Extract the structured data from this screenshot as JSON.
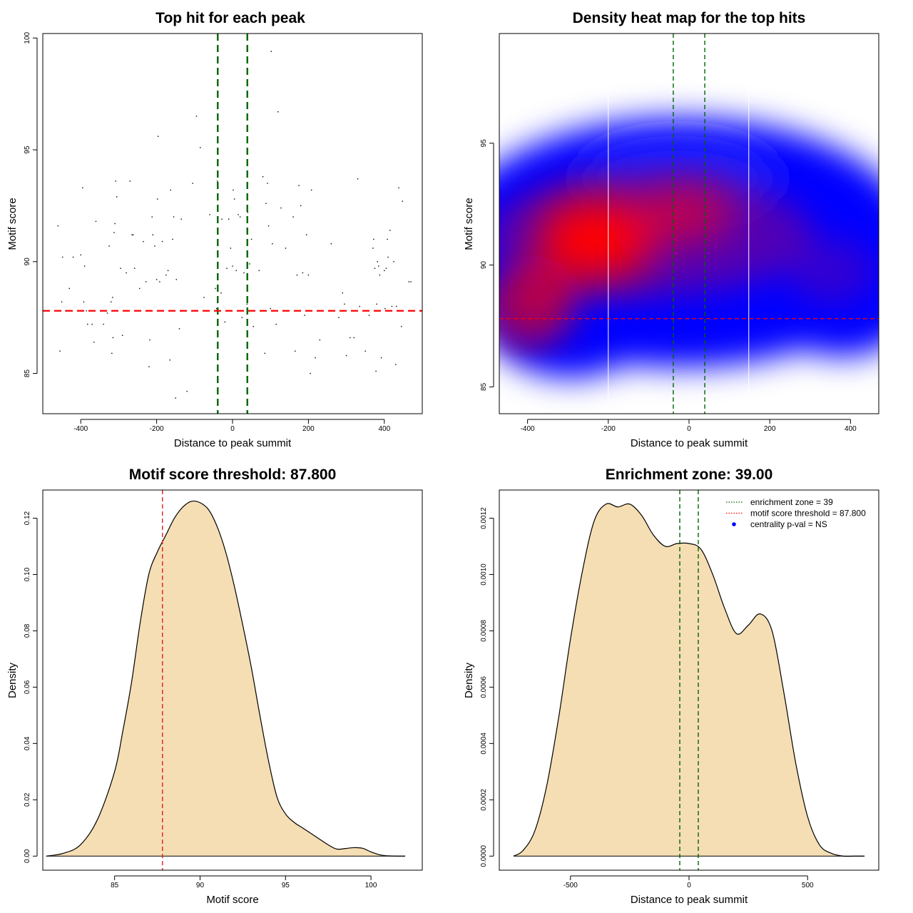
{
  "chart_data": [
    {
      "type": "scatter",
      "title": "Top hit for each peak",
      "xlabel": "Distance to peak summit",
      "ylabel": "Motif score",
      "xlim": [
        -500,
        500
      ],
      "ylim": [
        83.2,
        100.2
      ],
      "xticks": [
        "-400",
        "-200",
        "0",
        "200",
        "400"
      ],
      "yticks": [
        "85",
        "90",
        "95",
        "100"
      ],
      "vlines": [
        -39,
        39
      ],
      "hline": 87.8,
      "points": [
        [
          -460,
          91.6
        ],
        [
          -455,
          86.0
        ],
        [
          -448,
          90.2
        ],
        [
          -440,
          87.8
        ],
        [
          -430,
          88.8
        ],
        [
          -450,
          88.2
        ],
        [
          -420,
          90.2
        ],
        [
          -400,
          90.3
        ],
        [
          -395,
          93.3
        ],
        [
          -392,
          88.2
        ],
        [
          -390,
          89.8
        ],
        [
          -385,
          87.8
        ],
        [
          -382,
          87.2
        ],
        [
          -370,
          87.2
        ],
        [
          -365,
          86.4
        ],
        [
          -360,
          91.8
        ],
        [
          -340,
          87.2
        ],
        [
          -335,
          87.8
        ],
        [
          -330,
          87.7
        ],
        [
          -325,
          90.7
        ],
        [
          -320,
          88.2
        ],
        [
          -318,
          85.9
        ],
        [
          -316,
          88.4
        ],
        [
          -315,
          86.6
        ],
        [
          -312,
          91.3
        ],
        [
          -310,
          91.7
        ],
        [
          -308,
          93.6
        ],
        [
          -305,
          92.9
        ],
        [
          -295,
          89.7
        ],
        [
          -290,
          86.7
        ],
        [
          -280,
          89.5
        ],
        [
          -270,
          93.6
        ],
        [
          -265,
          91.2
        ],
        [
          -262,
          91.2
        ],
        [
          -258,
          89.7
        ],
        [
          -245,
          88.8
        ],
        [
          -235,
          90.9
        ],
        [
          -228,
          89.1
        ],
        [
          -220,
          85.3
        ],
        [
          -218,
          86.5
        ],
        [
          -212,
          92.0
        ],
        [
          -210,
          91.2
        ],
        [
          -205,
          90.7
        ],
        [
          -200,
          89.2
        ],
        [
          -198,
          92.8
        ],
        [
          -196,
          95.6
        ],
        [
          -192,
          89.1
        ],
        [
          -185,
          90.9
        ],
        [
          -175,
          89.4
        ],
        [
          -170,
          89.6
        ],
        [
          -165,
          85.6
        ],
        [
          -163,
          93.2
        ],
        [
          -158,
          91.0
        ],
        [
          -155,
          92.0
        ],
        [
          -150,
          83.9
        ],
        [
          -148,
          89.2
        ],
        [
          -140,
          87.0
        ],
        [
          -135,
          91.9
        ],
        [
          -120,
          84.2
        ],
        [
          -105,
          93.5
        ],
        [
          -95,
          96.5
        ],
        [
          -85,
          95.1
        ],
        [
          -75,
          88.4
        ],
        [
          -60,
          92.1
        ],
        [
          -45,
          88.8
        ],
        [
          -40,
          93.6
        ],
        [
          -30,
          88.6
        ],
        [
          -28,
          91.9
        ],
        [
          -20,
          87.3
        ],
        [
          -15,
          89.7
        ],
        [
          -10,
          91.9
        ],
        [
          0,
          89.8
        ],
        [
          2,
          93.2
        ],
        [
          5,
          92.8
        ],
        [
          10,
          89.6
        ],
        [
          15,
          92.1
        ],
        [
          20,
          92.0
        ],
        [
          25,
          87.5
        ],
        [
          30,
          89.5
        ],
        [
          38,
          88.1
        ],
        [
          40,
          92.2
        ],
        [
          45,
          89.9
        ],
        [
          50,
          91.0
        ],
        [
          55,
          87.1
        ],
        [
          70,
          89.6
        ],
        [
          80,
          93.8
        ],
        [
          85,
          85.9
        ],
        [
          88,
          92.6
        ],
        [
          92,
          93.5
        ],
        [
          95,
          91.6
        ],
        [
          100,
          87.9
        ],
        [
          105,
          90.8
        ],
        [
          115,
          87.2
        ],
        [
          120,
          96.7
        ],
        [
          128,
          92.4
        ],
        [
          140,
          90.6
        ],
        [
          160,
          92.0
        ],
        [
          165,
          86.0
        ],
        [
          170,
          89.4
        ],
        [
          175,
          93.4
        ],
        [
          180,
          92.5
        ],
        [
          185,
          89.5
        ],
        [
          190,
          87.6
        ],
        [
          195,
          91.2
        ],
        [
          200,
          89.4
        ],
        [
          205,
          85.0
        ],
        [
          208,
          93.2
        ],
        [
          218,
          85.7
        ],
        [
          230,
          86.5
        ],
        [
          260,
          90.8
        ],
        [
          280,
          87.5
        ],
        [
          290,
          88.6
        ],
        [
          310,
          86.6
        ],
        [
          320,
          86.6
        ],
        [
          330,
          93.7
        ],
        [
          335,
          88.0
        ],
        [
          350,
          86.0
        ],
        [
          360,
          87.6
        ],
        [
          370,
          90.6
        ],
        [
          372,
          91.0
        ],
        [
          375,
          89.7
        ],
        [
          378,
          85.1
        ],
        [
          380,
          88.1
        ],
        [
          382,
          90.0
        ],
        [
          385,
          89.8
        ],
        [
          388,
          89.4
        ],
        [
          392,
          85.7
        ],
        [
          400,
          89.6
        ],
        [
          402,
          87.9
        ],
        [
          405,
          89.7
        ],
        [
          408,
          91.0
        ],
        [
          410,
          90.2
        ],
        [
          415,
          91.4
        ],
        [
          420,
          88.0
        ],
        [
          425,
          90.0
        ],
        [
          430,
          85.4
        ],
        [
          432,
          88.0
        ],
        [
          438,
          93.3
        ],
        [
          445,
          87.1
        ],
        [
          448,
          92.7
        ],
        [
          465,
          89.1
        ],
        [
          470,
          89.1
        ],
        [
          295,
          88.1
        ],
        [
          300,
          85.8
        ],
        [
          102,
          99.4
        ],
        [
          -42,
          87.9
        ],
        [
          -5,
          90.6
        ]
      ]
    },
    {
      "type": "heatmap",
      "title": "Density heat map for the top hits",
      "xlabel": "Distance to peak summit",
      "ylabel": "Motif score",
      "xlim": [
        -470,
        470
      ],
      "ylim": [
        83.9,
        99.5
      ],
      "xticks": [
        "-400",
        "-200",
        "0",
        "200",
        "400"
      ],
      "yticks": [
        "85",
        "90",
        "95"
      ],
      "vlines": [
        -39,
        39
      ],
      "white_vlines": [
        -200,
        148
      ],
      "hline": 87.8,
      "colors": [
        "#ffffff",
        "#0000ff",
        "#ff0000"
      ]
    },
    {
      "type": "area",
      "title": "Motif score threshold: 87.800",
      "xlabel": "Motif score",
      "ylabel": "Density",
      "xlim": [
        80.8,
        103.0
      ],
      "ylim": [
        -0.005,
        0.13
      ],
      "xticks": [
        "85",
        "90",
        "95",
        "100"
      ],
      "yticks": [
        "0.00",
        "0.02",
        "0.04",
        "0.06",
        "0.08",
        "0.10",
        "0.12"
      ],
      "vline": 87.8,
      "fill": "#f5deb3",
      "x": [
        81.0,
        82.0,
        83.0,
        84.0,
        85.0,
        85.5,
        86.0,
        86.5,
        87.0,
        87.5,
        88.0,
        88.5,
        89.0,
        89.5,
        90.0,
        90.5,
        91.0,
        91.5,
        92.0,
        92.5,
        93.0,
        93.5,
        94.0,
        94.5,
        95.0,
        95.5,
        96.0,
        96.5,
        97.0,
        97.5,
        98.0,
        98.5,
        99.0,
        99.5,
        100.0,
        100.5,
        101.0,
        102.0
      ],
      "y": [
        0.0,
        0.001,
        0.004,
        0.013,
        0.03,
        0.045,
        0.062,
        0.083,
        0.1,
        0.108,
        0.114,
        0.12,
        0.124,
        0.126,
        0.1255,
        0.123,
        0.117,
        0.108,
        0.096,
        0.082,
        0.067,
        0.05,
        0.034,
        0.021,
        0.015,
        0.012,
        0.01,
        0.008,
        0.006,
        0.004,
        0.0025,
        0.0027,
        0.003,
        0.0028,
        0.0015,
        0.0005,
        0.0001,
        0.0
      ]
    },
    {
      "type": "area",
      "title": "Enrichment zone: 39.00",
      "xlabel": "Distance to peak summit",
      "ylabel": "Density",
      "xlim": [
        -800,
        800
      ],
      "ylim": [
        -5e-05,
        0.0013
      ],
      "xticks": [
        "-500",
        "0",
        "500"
      ],
      "yticks": [
        "0.0000",
        "0.0002",
        "0.0004",
        "0.0006",
        "0.0008",
        "0.0010",
        "0.0012"
      ],
      "vlines": [
        -39,
        39
      ],
      "fill": "#f5deb3",
      "x": [
        -740,
        -700,
        -650,
        -600,
        -550,
        -500,
        -450,
        -400,
        -350,
        -300,
        -250,
        -200,
        -150,
        -100,
        -50,
        0,
        50,
        100,
        150,
        200,
        250,
        300,
        350,
        400,
        450,
        500,
        550,
        600,
        650,
        700,
        740
      ],
      "y": [
        0.0,
        2e-05,
        9e-05,
        0.00025,
        0.00049,
        0.00077,
        0.00101,
        0.00119,
        0.00125,
        0.00124,
        0.00125,
        0.00121,
        0.00114,
        0.0011,
        0.00111,
        0.00111,
        0.00109,
        0.001,
        0.00088,
        0.00079,
        0.00082,
        0.00086,
        0.0008,
        0.00058,
        0.00033,
        0.00014,
        4e-05,
        1e-05,
        0.0,
        0.0,
        0.0
      ],
      "legend": [
        {
          "label": "enrichment zone = 39",
          "color": "#006400",
          "style": "dotted-line"
        },
        {
          "label": "motif score threshold = 87.800",
          "color": "#ff0000",
          "style": "dotted-line"
        },
        {
          "label": "centrality p-val = NS",
          "color": "#0000ff",
          "style": "point"
        }
      ],
      "legend_position": "top-right"
    }
  ]
}
